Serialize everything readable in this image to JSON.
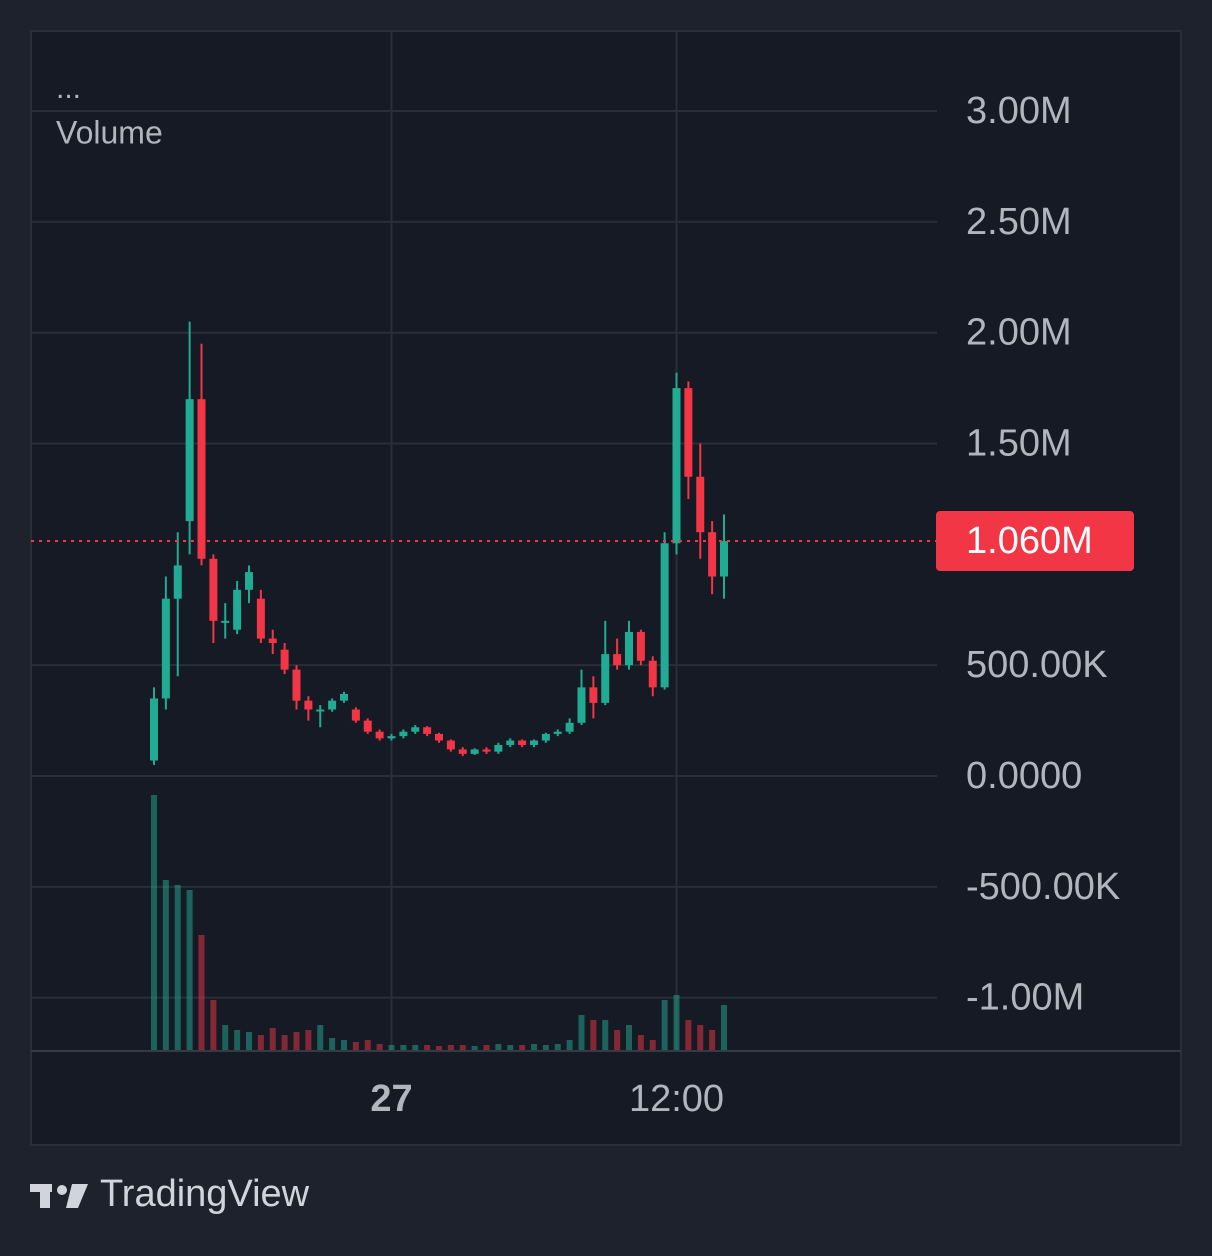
{
  "chart_data": {
    "type": "candlestick",
    "legend_title": "...",
    "volume_label": "Volume",
    "brand": "TradingView",
    "categories": [
      null,
      null,
      null,
      null,
      null,
      null,
      null,
      null,
      null,
      null,
      null,
      null,
      null,
      null,
      null,
      null,
      null,
      null,
      null,
      null,
      "27",
      null,
      null,
      null,
      null,
      null,
      null,
      null,
      null,
      null,
      null,
      null,
      null,
      null,
      null,
      null,
      null,
      null,
      null,
      null,
      null,
      null,
      null,
      null,
      "12:00",
      null,
      null,
      null,
      null
    ],
    "open": [
      70000,
      350000,
      800000,
      1150000,
      1700000,
      980000,
      700000,
      660000,
      840000,
      800000,
      620000,
      570000,
      480000,
      340000,
      300000,
      300000,
      340000,
      300000,
      250000,
      200000,
      170000,
      180000,
      200000,
      220000,
      190000,
      160000,
      120000,
      100000,
      120000,
      110000,
      140000,
      160000,
      140000,
      160000,
      190000,
      200000,
      240000,
      400000,
      330000,
      550000,
      500000,
      650000,
      520000,
      400000,
      1050000,
      1750000,
      1350000,
      1100000,
      900000
    ],
    "high": [
      400000,
      900000,
      1100000,
      2050000,
      1950000,
      1000000,
      780000,
      880000,
      950000,
      840000,
      660000,
      600000,
      500000,
      360000,
      320000,
      350000,
      380000,
      310000,
      260000,
      210000,
      190000,
      210000,
      230000,
      225000,
      195000,
      165000,
      130000,
      125000,
      130000,
      150000,
      170000,
      165000,
      165000,
      195000,
      210000,
      260000,
      480000,
      450000,
      700000,
      620000,
      700000,
      660000,
      540000,
      1100000,
      1820000,
      1780000,
      1500000,
      1150000,
      1180000
    ],
    "low": [
      50000,
      300000,
      450000,
      1000000,
      950000,
      600000,
      620000,
      640000,
      780000,
      600000,
      550000,
      460000,
      300000,
      250000,
      220000,
      290000,
      330000,
      240000,
      190000,
      160000,
      160000,
      170000,
      190000,
      180000,
      150000,
      110000,
      90000,
      95000,
      100000,
      100000,
      130000,
      130000,
      130000,
      150000,
      180000,
      190000,
      230000,
      260000,
      320000,
      480000,
      480000,
      500000,
      360000,
      390000,
      1000000,
      1250000,
      980000,
      820000,
      800000
    ],
    "close": [
      350000,
      800000,
      950000,
      1700000,
      980000,
      700000,
      700000,
      840000,
      920000,
      620000,
      600000,
      480000,
      340000,
      300000,
      300000,
      340000,
      370000,
      250000,
      200000,
      170000,
      180000,
      200000,
      220000,
      190000,
      160000,
      120000,
      100000,
      120000,
      110000,
      140000,
      160000,
      140000,
      160000,
      190000,
      200000,
      240000,
      400000,
      330000,
      550000,
      500000,
      650000,
      520000,
      400000,
      1050000,
      1750000,
      1350000,
      1100000,
      900000,
      1060000
    ],
    "volume": [
      255,
      170,
      165,
      160,
      115,
      50,
      25,
      20,
      18,
      15,
      22,
      15,
      18,
      20,
      25,
      12,
      10,
      8,
      10,
      6,
      5,
      5,
      5,
      5,
      4,
      5,
      5,
      4,
      5,
      6,
      5,
      5,
      6,
      5,
      6,
      10,
      35,
      30,
      30,
      20,
      25,
      15,
      10,
      50,
      55,
      30,
      25,
      20,
      45
    ],
    "up_color": "#22ab94",
    "down_color": "#f23645",
    "last_price": {
      "value": 1060000,
      "label": "1.060M"
    },
    "ylim": [
      -1236000,
      3361000
    ],
    "yticks": [
      {
        "value": 3000000,
        "label": "3.00M"
      },
      {
        "value": 2500000,
        "label": "2.50M"
      },
      {
        "value": 2000000,
        "label": "2.00M"
      },
      {
        "value": 1500000,
        "label": "1.50M"
      },
      {
        "value": 500000,
        "label": "500.00K"
      },
      {
        "value": 0,
        "label": "0.0000"
      },
      {
        "value": -500000,
        "label": "-500.00K"
      },
      {
        "value": -1000000,
        "label": "-1.00M"
      }
    ],
    "grid": true
  }
}
